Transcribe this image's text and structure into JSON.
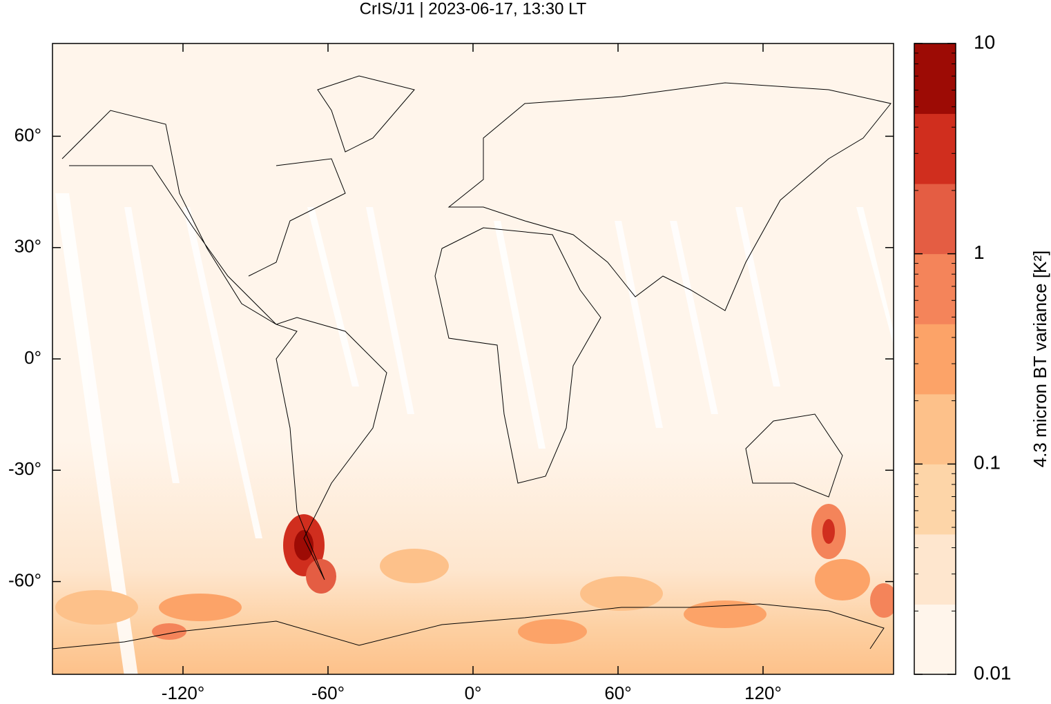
{
  "chart_data": {
    "type": "map",
    "title": "CrIS/J1 | 2023-06-17, 13:30 LT",
    "xlim": [
      -174,
      174
    ],
    "ylim": [
      -85,
      85
    ],
    "xticks": [
      {
        "value": -120,
        "label": "-120°"
      },
      {
        "value": -60,
        "label": "-60°"
      },
      {
        "value": 0,
        "label": "0°"
      },
      {
        "value": 60,
        "label": "60°"
      },
      {
        "value": 120,
        "label": "120°"
      }
    ],
    "yticks": [
      {
        "value": -60,
        "label": "-60°"
      },
      {
        "value": -30,
        "label": "-30°"
      },
      {
        "value": 0,
        "label": "0°"
      },
      {
        "value": 30,
        "label": "30°"
      },
      {
        "value": 60,
        "label": "60°"
      }
    ],
    "colorbar": {
      "label": "4.3 micron BT variance [K²]",
      "lim": [
        0.01,
        10
      ],
      "log": true,
      "ticks": [
        0.01,
        0.1,
        1,
        10
      ],
      "colors": [
        "#fff5eb",
        "#fee6ce",
        "#fdd5a8",
        "#fdc18a",
        "#fca368",
        "#f4845a",
        "#e45d43",
        "#d02e1e",
        "#9d0b05"
      ]
    }
  }
}
